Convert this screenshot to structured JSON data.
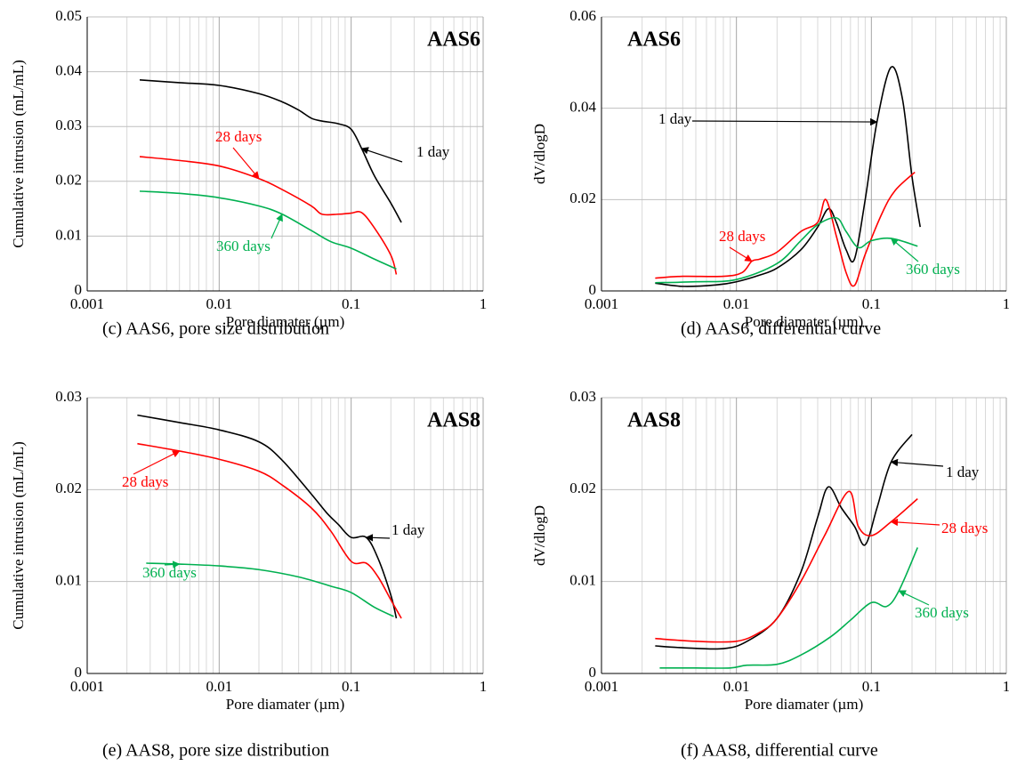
{
  "chart_data": [
    {
      "type": "line",
      "title": "AAS6",
      "caption": "(c) AAS6, pore size distribution",
      "xlabel": "Pore diamater (µm)",
      "ylabel": "Cumulative intrusion (mL/mL)",
      "xscale": "log",
      "grid": true,
      "xlim": [
        0.001,
        1
      ],
      "xticks": [
        0.001,
        0.01,
        0.1,
        1
      ],
      "ylim": [
        0,
        0.05
      ],
      "yticks": [
        0,
        0.01,
        0.02,
        0.03,
        0.04,
        0.05
      ],
      "series": [
        {
          "name": "1 day",
          "color": "#000000",
          "x": [
            0.0025,
            0.005,
            0.01,
            0.02,
            0.03,
            0.04,
            0.05,
            0.06,
            0.08,
            0.1,
            0.12,
            0.15,
            0.2,
            0.24
          ],
          "values": [
            0.0385,
            0.038,
            0.0375,
            0.036,
            0.0345,
            0.033,
            0.0315,
            0.031,
            0.0305,
            0.0295,
            0.026,
            0.021,
            0.016,
            0.0125
          ]
        },
        {
          "name": "28 days",
          "color": "#ff0000",
          "x": [
            0.0025,
            0.005,
            0.01,
            0.02,
            0.03,
            0.05,
            0.06,
            0.08,
            0.1,
            0.12,
            0.15,
            0.2,
            0.22
          ],
          "values": [
            0.0245,
            0.0238,
            0.0228,
            0.0205,
            0.0185,
            0.0155,
            0.014,
            0.014,
            0.0142,
            0.0143,
            0.0115,
            0.0065,
            0.003
          ]
        },
        {
          "name": "360 days",
          "color": "#00b050",
          "x": [
            0.0025,
            0.005,
            0.01,
            0.02,
            0.03,
            0.05,
            0.07,
            0.1,
            0.15,
            0.22
          ],
          "values": [
            0.0182,
            0.0178,
            0.017,
            0.0155,
            0.014,
            0.011,
            0.009,
            0.0078,
            0.0058,
            0.004
          ]
        }
      ]
    },
    {
      "type": "line",
      "title": "AAS6",
      "caption": "(d) AAS6, differential curve",
      "xlabel": "Pore diamater (µm)",
      "ylabel": "dV/dlogD",
      "xscale": "log",
      "grid": true,
      "xlim": [
        0.001,
        1
      ],
      "xticks": [
        0.001,
        0.01,
        0.1,
        1
      ],
      "ylim": [
        0,
        0.06
      ],
      "yticks": [
        0,
        0.02,
        0.04,
        0.06
      ],
      "series": [
        {
          "name": "1 day",
          "color": "#000000",
          "x": [
            0.0025,
            0.004,
            0.007,
            0.01,
            0.015,
            0.02,
            0.03,
            0.04,
            0.048,
            0.055,
            0.065,
            0.075,
            0.09,
            0.11,
            0.14,
            0.17,
            0.2,
            0.23
          ],
          "values": [
            0.0017,
            0.001,
            0.0013,
            0.002,
            0.0035,
            0.005,
            0.009,
            0.014,
            0.018,
            0.015,
            0.009,
            0.007,
            0.02,
            0.037,
            0.049,
            0.042,
            0.025,
            0.014
          ]
        },
        {
          "name": "28 days",
          "color": "#ff0000",
          "x": [
            0.0025,
            0.004,
            0.008,
            0.011,
            0.013,
            0.015,
            0.02,
            0.03,
            0.04,
            0.046,
            0.055,
            0.065,
            0.075,
            0.09,
            0.12,
            0.15,
            0.21
          ],
          "values": [
            0.0028,
            0.0032,
            0.0032,
            0.004,
            0.0065,
            0.007,
            0.0085,
            0.013,
            0.015,
            0.02,
            0.012,
            0.004,
            0.0012,
            0.008,
            0.017,
            0.022,
            0.026
          ]
        },
        {
          "name": "360 days",
          "color": "#00b050",
          "x": [
            0.0025,
            0.005,
            0.01,
            0.02,
            0.03,
            0.04,
            0.055,
            0.065,
            0.08,
            0.1,
            0.14,
            0.22
          ],
          "values": [
            0.0018,
            0.002,
            0.0025,
            0.006,
            0.011,
            0.0145,
            0.016,
            0.013,
            0.0095,
            0.011,
            0.0115,
            0.0098
          ]
        }
      ]
    },
    {
      "type": "line",
      "title": "AAS8",
      "caption": "(e) AAS8, pore size distribution",
      "xlabel": "Pore diamater (µm)",
      "ylabel": "Cumulative intrusion (mL/mL)",
      "xscale": "log",
      "grid": true,
      "xlim": [
        0.001,
        1
      ],
      "xticks": [
        0.001,
        0.01,
        0.1,
        1
      ],
      "ylim": [
        0,
        0.03
      ],
      "yticks": [
        0,
        0.01,
        0.02,
        0.03
      ],
      "series": [
        {
          "name": "1 day",
          "color": "#000000",
          "x": [
            0.0024,
            0.005,
            0.01,
            0.02,
            0.03,
            0.05,
            0.065,
            0.08,
            0.1,
            0.13,
            0.16,
            0.2,
            0.22
          ],
          "values": [
            0.0281,
            0.0273,
            0.0265,
            0.0252,
            0.0232,
            0.0195,
            0.0175,
            0.0162,
            0.0148,
            0.0148,
            0.0125,
            0.0085,
            0.006
          ]
        },
        {
          "name": "28 days",
          "color": "#ff0000",
          "x": [
            0.0024,
            0.005,
            0.01,
            0.02,
            0.03,
            0.05,
            0.07,
            0.1,
            0.13,
            0.16,
            0.2,
            0.24
          ],
          "values": [
            0.025,
            0.0242,
            0.0233,
            0.022,
            0.0205,
            0.018,
            0.0155,
            0.0122,
            0.012,
            0.0105,
            0.008,
            0.006
          ]
        },
        {
          "name": "360 days",
          "color": "#00b050",
          "x": [
            0.0028,
            0.005,
            0.01,
            0.02,
            0.04,
            0.07,
            0.1,
            0.15,
            0.21
          ],
          "values": [
            0.012,
            0.0119,
            0.0117,
            0.0113,
            0.0105,
            0.0095,
            0.0088,
            0.0072,
            0.0062
          ]
        }
      ]
    },
    {
      "type": "line",
      "title": "AAS8",
      "caption": "(f) AAS8, differential curve",
      "xlabel": "Pore diamater (µm)",
      "ylabel": "dV/dlogD",
      "xscale": "log",
      "grid": true,
      "xlim": [
        0.001,
        1
      ],
      "xticks": [
        0.001,
        0.01,
        0.1,
        1
      ],
      "ylim": [
        0,
        0.03
      ],
      "yticks": [
        0,
        0.01,
        0.02,
        0.03
      ],
      "series": [
        {
          "name": "1 day",
          "color": "#000000",
          "x": [
            0.0025,
            0.004,
            0.008,
            0.012,
            0.02,
            0.03,
            0.04,
            0.048,
            0.06,
            0.075,
            0.09,
            0.11,
            0.14,
            0.2
          ],
          "values": [
            0.003,
            0.0028,
            0.0027,
            0.0035,
            0.006,
            0.011,
            0.017,
            0.0203,
            0.018,
            0.016,
            0.014,
            0.018,
            0.023,
            0.026
          ]
        },
        {
          "name": "28 days",
          "color": "#ff0000",
          "x": [
            0.0025,
            0.005,
            0.01,
            0.015,
            0.02,
            0.03,
            0.045,
            0.068,
            0.08,
            0.1,
            0.14,
            0.22
          ],
          "values": [
            0.0038,
            0.0035,
            0.0035,
            0.0045,
            0.006,
            0.01,
            0.015,
            0.0198,
            0.016,
            0.015,
            0.0165,
            0.019
          ]
        },
        {
          "name": "360 days",
          "color": "#00b050",
          "x": [
            0.0027,
            0.005,
            0.009,
            0.012,
            0.02,
            0.03,
            0.05,
            0.07,
            0.1,
            0.13,
            0.16,
            0.22
          ],
          "values": [
            0.0006,
            0.0006,
            0.0006,
            0.0009,
            0.001,
            0.002,
            0.004,
            0.0058,
            0.0077,
            0.0073,
            0.009,
            0.0137
          ]
        }
      ]
    }
  ]
}
